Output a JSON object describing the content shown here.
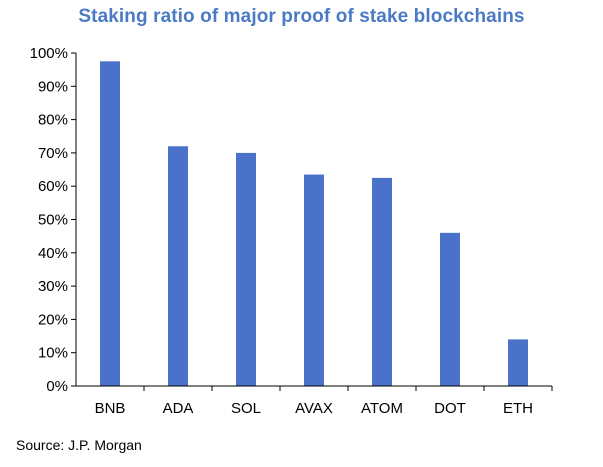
{
  "chart_data": {
    "type": "bar",
    "title": "Staking ratio of major proof of stake blockchains",
    "xlabel": "",
    "ylabel": "",
    "categories": [
      "BNB",
      "ADA",
      "SOL",
      "AVAX",
      "ATOM",
      "DOT",
      "ETH"
    ],
    "values": [
      97.5,
      72,
      70,
      63.5,
      62.5,
      46,
      14
    ],
    "ylim": [
      0,
      100
    ],
    "yticks": [
      "0%",
      "10%",
      "20%",
      "30%",
      "40%",
      "50%",
      "60%",
      "70%",
      "80%",
      "90%",
      "100%"
    ],
    "grid": false,
    "legend": "none",
    "bar_color": "#4a72c9",
    "title_color": "#4a7bc4"
  },
  "source": "Source: J.P. Morgan"
}
